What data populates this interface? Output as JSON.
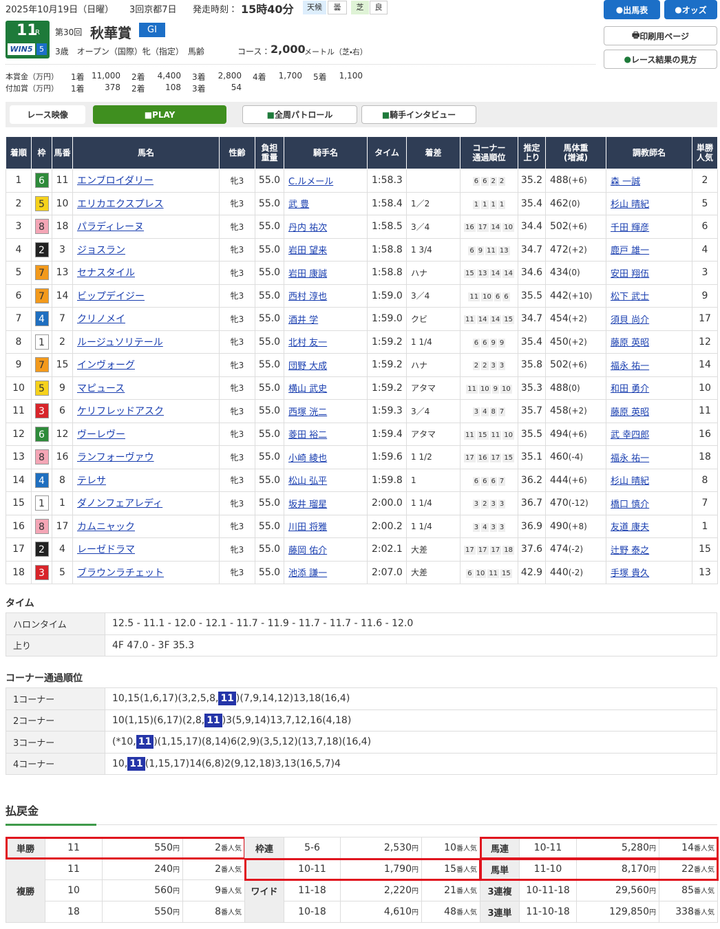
{
  "header": {
    "date": "2025年10月19日（日曜）",
    "meeting": "3回京都7日",
    "start_label": "発走時刻：",
    "start_time": "15時40分",
    "weather_label": "天候",
    "weather": "曇",
    "track_label": "芝",
    "track": "良",
    "race_no": "11",
    "race_r": "R",
    "win5": "WIN5",
    "win5_no": "5",
    "edition": "第30回",
    "race_name": "秋華賞",
    "grade": "GI",
    "conditions": "3歳　オープン（国際）牝（指定）　馬齢",
    "course_label": "コース：",
    "distance": "2,000",
    "course_unit": "メートル（芝・右）"
  },
  "buttons": {
    "entries": "出馬表",
    "odds": "オッズ",
    "print": "印刷用ページ",
    "guide": "レース結果の見方"
  },
  "prize": {
    "main_label": "本賞金（万円）",
    "main": [
      [
        "1着",
        "11,000"
      ],
      [
        "2着",
        "4,400"
      ],
      [
        "3着",
        "2,800"
      ],
      [
        "4着",
        "1,700"
      ],
      [
        "5着",
        "1,100"
      ]
    ],
    "extra_label": "付加賞（万円）",
    "extra": [
      [
        "1着",
        "378"
      ],
      [
        "2着",
        "108"
      ],
      [
        "3着",
        "54"
      ]
    ]
  },
  "video": {
    "label": "レース映像",
    "play": "PLAY",
    "patrol": "全周パトロール",
    "interview": "騎手インタビュー"
  },
  "results": {
    "headers": [
      "着順",
      "枠",
      "馬番",
      "馬名",
      "性齢",
      "負担\n重量",
      "騎手名",
      "タイム",
      "着差",
      "コーナー\n通過順位",
      "推定\n上り",
      "馬体重\n(増減)",
      "調教師名",
      "単勝\n人気"
    ],
    "rows": [
      {
        "rank": 1,
        "frame": 6,
        "num": 11,
        "horse": "エンブロイダリー",
        "sex_age": "牝3",
        "load": "55.0",
        "jockey": "C.ルメール",
        "time": "1:58.3",
        "margin": null,
        "corners": [
          6,
          6,
          2,
          2
        ],
        "last": "35.2",
        "weight": 488,
        "change": "(+6)",
        "trainer": "森 一誠",
        "pop": 2
      },
      {
        "rank": 2,
        "frame": 5,
        "num": 10,
        "horse": "エリカエクスプレス",
        "sex_age": "牝3",
        "load": "55.0",
        "jockey": "武 豊",
        "time": "1:58.4",
        "margin": "1／2",
        "corners": [
          1,
          1,
          1,
          1
        ],
        "last": "35.4",
        "weight": 462,
        "change": "(0)",
        "trainer": "杉山 晴紀",
        "pop": 5
      },
      {
        "rank": 3,
        "frame": 8,
        "num": 18,
        "horse": "パラディレーヌ",
        "sex_age": "牝3",
        "load": "55.0",
        "jockey": "丹内 祐次",
        "time": "1:58.5",
        "margin": "3／4",
        "corners": [
          16,
          17,
          14,
          10
        ],
        "last": "34.4",
        "weight": 502,
        "change": "(+6)",
        "trainer": "千田 輝彦",
        "pop": 6
      },
      {
        "rank": 4,
        "frame": 2,
        "num": 3,
        "horse": "ジョスラン",
        "sex_age": "牝3",
        "load": "55.0",
        "jockey": "岩田 望来",
        "time": "1:58.8",
        "margin": "1 3/4",
        "corners": [
          6,
          9,
          11,
          13
        ],
        "last": "34.7",
        "weight": 472,
        "change": "(+2)",
        "trainer": "鹿戸 雄一",
        "pop": 4
      },
      {
        "rank": 5,
        "frame": 7,
        "num": 13,
        "horse": "セナスタイル",
        "sex_age": "牝3",
        "load": "55.0",
        "jockey": "岩田 康誠",
        "time": "1:58.8",
        "margin": "ハナ",
        "corners": [
          15,
          13,
          14,
          14
        ],
        "last": "34.6",
        "weight": 434,
        "change": "(0)",
        "trainer": "安田 翔伍",
        "pop": 3
      },
      {
        "rank": 6,
        "frame": 7,
        "num": 14,
        "horse": "ビップデイジー",
        "sex_age": "牝3",
        "load": "55.0",
        "jockey": "西村 淳也",
        "time": "1:59.0",
        "margin": "3／4",
        "corners": [
          11,
          10,
          6,
          6
        ],
        "last": "35.5",
        "weight": 442,
        "change": "(+10)",
        "trainer": "松下 武士",
        "pop": 9
      },
      {
        "rank": 7,
        "frame": 4,
        "num": 7,
        "horse": "クリノメイ",
        "sex_age": "牝3",
        "load": "55.0",
        "jockey": "酒井 学",
        "time": "1:59.0",
        "margin": "クビ",
        "corners": [
          11,
          14,
          14,
          15
        ],
        "last": "34.7",
        "weight": 454,
        "change": "(+2)",
        "trainer": "須貝 尚介",
        "pop": 17
      },
      {
        "rank": 8,
        "frame": 1,
        "num": 2,
        "horse": "ルージュソリテール",
        "sex_age": "牝3",
        "load": "55.0",
        "jockey": "北村 友一",
        "time": "1:59.2",
        "margin": "1 1/4",
        "corners": [
          6,
          6,
          9,
          9
        ],
        "last": "35.4",
        "weight": 450,
        "change": "(+2)",
        "trainer": "藤原 英昭",
        "pop": 12
      },
      {
        "rank": 9,
        "frame": 7,
        "num": 15,
        "horse": "インヴォーグ",
        "sex_age": "牝3",
        "load": "55.0",
        "jockey": "団野 大成",
        "time": "1:59.2",
        "margin": "ハナ",
        "corners": [
          2,
          2,
          3,
          3
        ],
        "last": "35.8",
        "weight": 502,
        "change": "(+6)",
        "trainer": "福永 祐一",
        "pop": 14
      },
      {
        "rank": 10,
        "frame": 5,
        "num": 9,
        "horse": "マピュース",
        "sex_age": "牝3",
        "load": "55.0",
        "jockey": "横山 武史",
        "time": "1:59.2",
        "margin": "アタマ",
        "corners": [
          11,
          10,
          9,
          10
        ],
        "last": "35.3",
        "weight": 488,
        "change": "(0)",
        "trainer": "和田 勇介",
        "pop": 10
      },
      {
        "rank": 11,
        "frame": 3,
        "num": 6,
        "horse": "ケリフレッドアスク",
        "sex_age": "牝3",
        "load": "55.0",
        "jockey": "西塚 洸二",
        "time": "1:59.3",
        "margin": "3／4",
        "corners": [
          3,
          4,
          8,
          7
        ],
        "last": "35.7",
        "weight": 458,
        "change": "(+2)",
        "trainer": "藤原 英昭",
        "pop": 11
      },
      {
        "rank": 12,
        "frame": 6,
        "num": 12,
        "horse": "ヴーレヴー",
        "sex_age": "牝3",
        "load": "55.0",
        "jockey": "菱田 裕二",
        "time": "1:59.4",
        "margin": "アタマ",
        "corners": [
          11,
          15,
          11,
          10
        ],
        "last": "35.5",
        "weight": 494,
        "change": "(+6)",
        "trainer": "武 幸四郎",
        "pop": 16
      },
      {
        "rank": 13,
        "frame": 8,
        "num": 16,
        "horse": "ランフォーヴァウ",
        "sex_age": "牝3",
        "load": "55.0",
        "jockey": "小崎 綾也",
        "time": "1:59.6",
        "margin": "1 1/2",
        "corners": [
          17,
          16,
          17,
          15
        ],
        "last": "35.1",
        "weight": 460,
        "change": "(-4)",
        "trainer": "福永 祐一",
        "pop": 18
      },
      {
        "rank": 14,
        "frame": 4,
        "num": 8,
        "horse": "テレサ",
        "sex_age": "牝3",
        "load": "55.0",
        "jockey": "松山 弘平",
        "time": "1:59.8",
        "margin": "1",
        "corners": [
          6,
          6,
          6,
          7
        ],
        "last": "36.2",
        "weight": 444,
        "change": "(+6)",
        "trainer": "杉山 晴紀",
        "pop": 8
      },
      {
        "rank": 15,
        "frame": 1,
        "num": 1,
        "horse": "ダノンフェアレディ",
        "sex_age": "牝3",
        "load": "55.0",
        "jockey": "坂井 瑠星",
        "time": "2:00.0",
        "margin": "1 1/4",
        "corners": [
          3,
          2,
          3,
          3
        ],
        "last": "36.7",
        "weight": 470,
        "change": "(-12)",
        "trainer": "橋口 慎介",
        "pop": 7
      },
      {
        "rank": 16,
        "frame": 8,
        "num": 17,
        "horse": "カムニャック",
        "sex_age": "牝3",
        "load": "55.0",
        "jockey": "川田 将雅",
        "time": "2:00.2",
        "margin": "1 1/4",
        "corners": [
          3,
          4,
          3,
          3
        ],
        "last": "36.9",
        "weight": 490,
        "change": "(+8)",
        "trainer": "友道 康夫",
        "pop": 1
      },
      {
        "rank": 17,
        "frame": 2,
        "num": 4,
        "horse": "レーゼドラマ",
        "sex_age": "牝3",
        "load": "55.0",
        "jockey": "藤岡 佑介",
        "time": "2:02.1",
        "margin": "大差",
        "corners": [
          17,
          17,
          17,
          18
        ],
        "last": "37.6",
        "weight": 474,
        "change": "(-2)",
        "trainer": "辻野 泰之",
        "pop": 15
      },
      {
        "rank": 18,
        "frame": 3,
        "num": 5,
        "horse": "ブラウンラチェット",
        "sex_age": "牝3",
        "load": "55.0",
        "jockey": "池添 謙一",
        "time": "2:07.0",
        "margin": "大差",
        "corners": [
          6,
          10,
          11,
          15
        ],
        "last": "42.9",
        "weight": 440,
        "change": "(-2)",
        "trainer": "手塚 貴久",
        "pop": 13
      }
    ]
  },
  "times": {
    "title": "タイム",
    "rows": [
      [
        "ハロンタイム",
        "12.5 - 11.1 - 12.0 - 12.1 - 11.7 - 11.9 - 11.7 - 11.7 - 11.6 - 12.0"
      ],
      [
        "上り",
        "4F 47.0 - 3F 35.3"
      ]
    ]
  },
  "corner_order": {
    "title": "コーナー通過順位",
    "rows": [
      {
        "label": "1コーナー",
        "before": "10,15(1,6,17)(3,2,5,8,",
        "mark": "11",
        "after": ")(7,9,14,12)13,18(16,4)"
      },
      {
        "label": "2コーナー",
        "before": "10(1,15)(6,17)(2,8,",
        "mark": "11",
        "after": ")3(5,9,14)13,7,12,16(4,18)"
      },
      {
        "label": "3コーナー",
        "before": "(*10,",
        "mark": "11",
        "after": ")(1,15,17)(8,14)6(2,9)(3,5,12)(13,7,18)(16,4)"
      },
      {
        "label": "4コーナー",
        "before": "10,",
        "mark": "11",
        "after": "(1,15,17)14(6,8)2(9,12,18)3,13(16,5,7)4"
      }
    ]
  },
  "payouts": {
    "title": "払戻金",
    "yen": "円",
    "pop_unit": "番人気",
    "groups": [
      [
        {
          "type": "単勝",
          "rows": [
            {
              "combo": "11",
              "amount": "550",
              "pop": "2",
              "highlight": true
            }
          ]
        },
        {
          "type": "複勝",
          "rows": [
            {
              "combo": "11",
              "amount": "240",
              "pop": "2"
            },
            {
              "combo": "10",
              "amount": "560",
              "pop": "9"
            },
            {
              "combo": "18",
              "amount": "550",
              "pop": "8"
            }
          ]
        }
      ],
      [
        {
          "type": "枠連",
          "rows": [
            {
              "combo": "5-6",
              "amount": "2,530",
              "pop": "10"
            }
          ]
        },
        {
          "type": "ワイド",
          "rows": [
            {
              "combo": "10-11",
              "amount": "1,790",
              "pop": "15",
              "highlight": true
            },
            {
              "combo": "11-18",
              "amount": "2,220",
              "pop": "21"
            },
            {
              "combo": "10-18",
              "amount": "4,610",
              "pop": "48"
            }
          ]
        }
      ],
      [
        {
          "type": "馬連",
          "rows": [
            {
              "combo": "10-11",
              "amount": "5,280",
              "pop": "14",
              "highlight": true
            }
          ]
        },
        {
          "type": "馬単",
          "rows": [
            {
              "combo": "11-10",
              "amount": "8,170",
              "pop": "22",
              "highlight": true
            }
          ]
        },
        {
          "type": "3連複",
          "rows": [
            {
              "combo": "10-11-18",
              "amount": "29,560",
              "pop": "85"
            }
          ]
        },
        {
          "type": "3連単",
          "rows": [
            {
              "combo": "11-10-18",
              "amount": "129,850",
              "pop": "338"
            }
          ]
        }
      ]
    ]
  }
}
